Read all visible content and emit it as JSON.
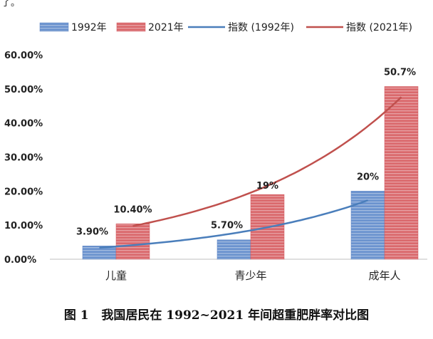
{
  "chart_data": {
    "type": "bar",
    "categories": [
      "儿童",
      "青少年",
      "成年人"
    ],
    "series": [
      {
        "name": "1992年",
        "values": [
          3.9,
          5.7,
          20
        ],
        "labels": [
          "3.90%",
          "5.70%",
          "20%"
        ],
        "color": "#5b84c4"
      },
      {
        "name": "2021年",
        "values": [
          10.4,
          19,
          50.7
        ],
        "labels": [
          "10.40%",
          "19%",
          "50.7%"
        ],
        "color": "#d2575c"
      }
    ],
    "trendlines": [
      {
        "name": "指数 (1992年)",
        "type": "exponential",
        "color": "#4a7ebb"
      },
      {
        "name": "指数 (2021年)",
        "type": "exponential",
        "color": "#c0504d"
      }
    ],
    "y_ticks": [
      "0.00%",
      "10.00%",
      "20.00%",
      "30.00%",
      "40.00%",
      "50.00%",
      "60.00%"
    ],
    "ylim": [
      0,
      60
    ],
    "grid": false,
    "legend_position": "top",
    "caption": "图 1   我国居民在 1992~2021 年间超重肥胖率对比图"
  },
  "page_top_fragment": "了。"
}
